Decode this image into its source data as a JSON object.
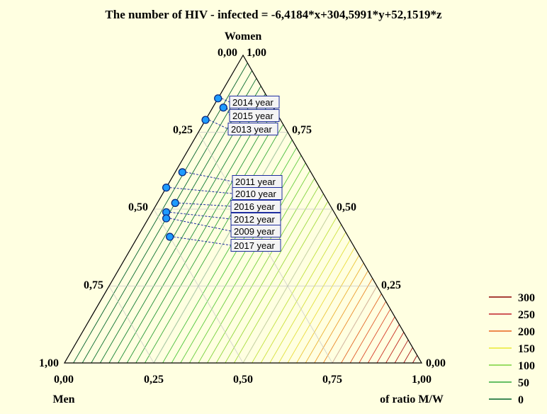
{
  "chart_data": {
    "type": "ternary-contour",
    "title": "The number of HIV - infected  = -6,4184*x+304,5991*y+52,1519*z",
    "axes": {
      "top_name": "Women",
      "bottom_left_name": "Men",
      "bottom_right_name": "of ratio M/W"
    },
    "ticks": {
      "bottom": [
        "0,00",
        "0,25",
        "0,50",
        "0,75",
        "1,00"
      ],
      "left": [
        "1,00",
        "0,75",
        "0,50",
        "0,25",
        "0,00"
      ],
      "right": [
        "0,00",
        "0,25",
        "0,50",
        "0,75",
        "1,00"
      ],
      "bottom_left_corner": "1,00"
    },
    "legend": {
      "levels": [
        "300",
        "250",
        "200",
        "150",
        "100",
        "50",
        "0"
      ],
      "colors": [
        "#8b0000",
        "#c0202a",
        "#e8641e",
        "#e8e832",
        "#78d23c",
        "#32aa3c",
        "#006428"
      ]
    },
    "series": [
      {
        "label": "2014 year",
        "women": 0.86,
        "ratio": 0.0
      },
      {
        "label": "2015 year",
        "women": 0.83,
        "ratio": 0.03
      },
      {
        "label": "2013 year",
        "women": 0.79,
        "ratio": 0.0
      },
      {
        "label": "2011 year",
        "women": 0.62,
        "ratio": 0.02
      },
      {
        "label": "2010 year",
        "women": 0.57,
        "ratio": 0.0
      },
      {
        "label": "2016 year",
        "women": 0.52,
        "ratio": 0.05
      },
      {
        "label": "2012 year",
        "women": 0.49,
        "ratio": 0.04
      },
      {
        "label": "2009 year",
        "women": 0.47,
        "ratio": 0.05
      },
      {
        "label": "2017 year",
        "women": 0.41,
        "ratio": 0.09
      }
    ]
  }
}
